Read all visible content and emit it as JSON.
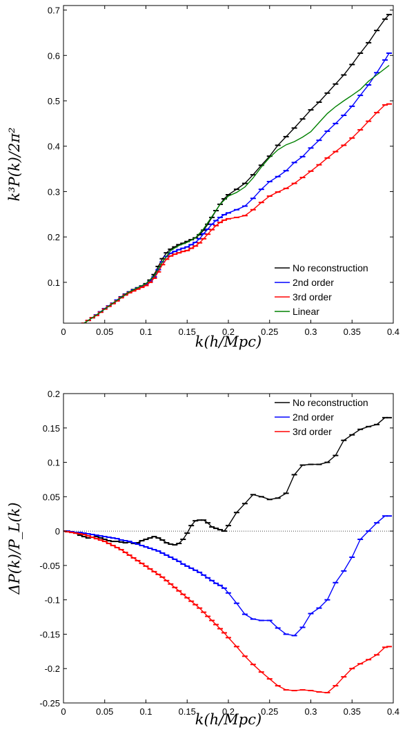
{
  "chart_data": [
    {
      "type": "line",
      "title": "",
      "xlabel": "k(h/Mpc)",
      "ylabel": "k³P(k)/2π²",
      "xlim": [
        0,
        0.4
      ],
      "ylim": [
        0.01,
        0.71
      ],
      "xticks": [
        "0",
        "0.05",
        "0.1",
        "0.15",
        "0.2",
        "0.25",
        "0.3",
        "0.35",
        "0.4"
      ],
      "yticks": [
        "0.1",
        "0.2",
        "0.3",
        "0.4",
        "0.5",
        "0.6",
        "0.7"
      ],
      "grid": false,
      "legend_position": "bottom-right",
      "series": [
        {
          "name": "No reconstruction",
          "color": "#000000",
          "error_bars": true,
          "x": [
            0.025,
            0.03,
            0.035,
            0.04,
            0.045,
            0.05,
            0.055,
            0.06,
            0.065,
            0.07,
            0.075,
            0.08,
            0.085,
            0.09,
            0.095,
            0.1,
            0.105,
            0.11,
            0.115,
            0.12,
            0.125,
            0.13,
            0.135,
            0.14,
            0.145,
            0.15,
            0.155,
            0.16,
            0.165,
            0.17,
            0.175,
            0.18,
            0.185,
            0.19,
            0.195,
            0.2,
            0.21,
            0.22,
            0.23,
            0.24,
            0.25,
            0.26,
            0.27,
            0.28,
            0.29,
            0.3,
            0.31,
            0.32,
            0.33,
            0.34,
            0.35,
            0.36,
            0.37,
            0.38,
            0.39,
            0.395
          ],
          "y": [
            0.01,
            0.016,
            0.022,
            0.028,
            0.035,
            0.042,
            0.048,
            0.054,
            0.061,
            0.068,
            0.074,
            0.079,
            0.084,
            0.088,
            0.092,
            0.097,
            0.105,
            0.117,
            0.135,
            0.152,
            0.165,
            0.173,
            0.178,
            0.183,
            0.186,
            0.19,
            0.194,
            0.198,
            0.205,
            0.215,
            0.228,
            0.243,
            0.258,
            0.272,
            0.284,
            0.293,
            0.305,
            0.318,
            0.337,
            0.358,
            0.378,
            0.402,
            0.421,
            0.44,
            0.46,
            0.48,
            0.497,
            0.517,
            0.537,
            0.557,
            0.58,
            0.605,
            0.628,
            0.655,
            0.68,
            0.69
          ]
        },
        {
          "name": "2nd order",
          "color": "#0000ff",
          "error_bars": true,
          "x": [
            0.025,
            0.03,
            0.035,
            0.04,
            0.045,
            0.05,
            0.055,
            0.06,
            0.065,
            0.07,
            0.075,
            0.08,
            0.085,
            0.09,
            0.095,
            0.1,
            0.105,
            0.11,
            0.115,
            0.12,
            0.125,
            0.13,
            0.135,
            0.14,
            0.145,
            0.15,
            0.155,
            0.16,
            0.165,
            0.17,
            0.175,
            0.18,
            0.185,
            0.19,
            0.195,
            0.2,
            0.21,
            0.22,
            0.23,
            0.24,
            0.25,
            0.26,
            0.27,
            0.28,
            0.29,
            0.3,
            0.31,
            0.32,
            0.33,
            0.34,
            0.35,
            0.36,
            0.37,
            0.38,
            0.39,
            0.395
          ],
          "y": [
            0.01,
            0.016,
            0.022,
            0.028,
            0.035,
            0.042,
            0.048,
            0.054,
            0.061,
            0.067,
            0.073,
            0.078,
            0.083,
            0.087,
            0.091,
            0.095,
            0.102,
            0.112,
            0.128,
            0.145,
            0.157,
            0.164,
            0.168,
            0.172,
            0.175,
            0.178,
            0.183,
            0.188,
            0.196,
            0.207,
            0.217,
            0.228,
            0.236,
            0.243,
            0.249,
            0.253,
            0.26,
            0.268,
            0.285,
            0.305,
            0.322,
            0.333,
            0.346,
            0.364,
            0.377,
            0.396,
            0.413,
            0.433,
            0.45,
            0.468,
            0.488,
            0.512,
            0.535,
            0.562,
            0.59,
            0.605
          ]
        },
        {
          "name": "3rd order",
          "color": "#ff0000",
          "error_bars": true,
          "x": [
            0.025,
            0.03,
            0.035,
            0.04,
            0.045,
            0.05,
            0.055,
            0.06,
            0.065,
            0.07,
            0.075,
            0.08,
            0.085,
            0.09,
            0.095,
            0.1,
            0.105,
            0.11,
            0.115,
            0.12,
            0.125,
            0.13,
            0.135,
            0.14,
            0.145,
            0.15,
            0.155,
            0.16,
            0.165,
            0.17,
            0.175,
            0.18,
            0.185,
            0.19,
            0.195,
            0.2,
            0.21,
            0.22,
            0.23,
            0.24,
            0.25,
            0.26,
            0.27,
            0.28,
            0.29,
            0.3,
            0.31,
            0.32,
            0.33,
            0.34,
            0.35,
            0.36,
            0.37,
            0.38,
            0.39,
            0.395
          ],
          "y": [
            0.01,
            0.016,
            0.022,
            0.027,
            0.034,
            0.041,
            0.047,
            0.053,
            0.059,
            0.066,
            0.072,
            0.077,
            0.081,
            0.085,
            0.089,
            0.093,
            0.1,
            0.109,
            0.123,
            0.139,
            0.151,
            0.158,
            0.162,
            0.165,
            0.168,
            0.17,
            0.175,
            0.18,
            0.187,
            0.196,
            0.206,
            0.216,
            0.225,
            0.232,
            0.237,
            0.24,
            0.243,
            0.247,
            0.26,
            0.276,
            0.29,
            0.299,
            0.307,
            0.318,
            0.331,
            0.345,
            0.359,
            0.374,
            0.388,
            0.402,
            0.418,
            0.436,
            0.455,
            0.474,
            0.491,
            0.493
          ]
        },
        {
          "name": "Linear",
          "color": "#008000",
          "error_bars": false,
          "x": [
            0.025,
            0.04,
            0.06,
            0.08,
            0.1,
            0.11,
            0.12,
            0.13,
            0.14,
            0.15,
            0.16,
            0.17,
            0.18,
            0.19,
            0.2,
            0.21,
            0.22,
            0.23,
            0.24,
            0.25,
            0.26,
            0.27,
            0.28,
            0.29,
            0.3,
            0.31,
            0.32,
            0.33,
            0.34,
            0.35,
            0.36,
            0.37,
            0.38,
            0.395
          ],
          "y": [
            0.01,
            0.028,
            0.054,
            0.079,
            0.097,
            0.114,
            0.145,
            0.17,
            0.181,
            0.188,
            0.198,
            0.218,
            0.245,
            0.272,
            0.29,
            0.298,
            0.31,
            0.33,
            0.354,
            0.375,
            0.392,
            0.403,
            0.41,
            0.42,
            0.432,
            0.452,
            0.472,
            0.487,
            0.5,
            0.512,
            0.525,
            0.543,
            0.557,
            0.578
          ]
        }
      ]
    },
    {
      "type": "line",
      "title": "",
      "xlabel": "k(h/Mpc)",
      "ylabel": "ΔP(k)/P_L(k)",
      "xlim": [
        0,
        0.4
      ],
      "ylim": [
        -0.25,
        0.2
      ],
      "xticks": [
        "0",
        "0.05",
        "0.1",
        "0.15",
        "0.2",
        "0.25",
        "0.3",
        "0.35",
        "0.4"
      ],
      "yticks": [
        "-0.25",
        "-0.2",
        "-0.15",
        "-0.1",
        "-0.05",
        "0",
        "0.05",
        "0.1",
        "0.15",
        "0.2"
      ],
      "grid": false,
      "reference_line_y": 0,
      "legend_position": "top-right",
      "series": [
        {
          "name": "No reconstruction",
          "color": "#000000",
          "error_bars": true,
          "x": [
            0.0,
            0.005,
            0.01,
            0.015,
            0.02,
            0.025,
            0.03,
            0.035,
            0.04,
            0.045,
            0.05,
            0.055,
            0.06,
            0.065,
            0.07,
            0.075,
            0.08,
            0.085,
            0.09,
            0.095,
            0.1,
            0.105,
            0.11,
            0.115,
            0.12,
            0.125,
            0.13,
            0.135,
            0.14,
            0.145,
            0.15,
            0.155,
            0.16,
            0.165,
            0.17,
            0.175,
            0.18,
            0.185,
            0.19,
            0.195,
            0.2,
            0.21,
            0.22,
            0.23,
            0.24,
            0.25,
            0.26,
            0.27,
            0.28,
            0.29,
            0.3,
            0.31,
            0.32,
            0.33,
            0.34,
            0.35,
            0.36,
            0.37,
            0.38,
            0.39,
            0.395
          ],
          "y": [
            0.0,
            0.0,
            -0.001,
            -0.003,
            -0.006,
            -0.008,
            -0.01,
            -0.009,
            -0.008,
            -0.01,
            -0.012,
            -0.014,
            -0.015,
            -0.015,
            -0.016,
            -0.017,
            -0.016,
            -0.018,
            -0.017,
            -0.014,
            -0.012,
            -0.01,
            -0.008,
            -0.01,
            -0.013,
            -0.017,
            -0.019,
            -0.02,
            -0.018,
            -0.012,
            -0.003,
            0.008,
            0.015,
            0.016,
            0.016,
            0.012,
            0.006,
            0.004,
            0.002,
            0.0,
            0.008,
            0.027,
            0.04,
            0.053,
            0.05,
            0.046,
            0.048,
            0.055,
            0.082,
            0.096,
            0.097,
            0.097,
            0.1,
            0.11,
            0.132,
            0.14,
            0.148,
            0.152,
            0.155,
            0.165,
            0.165
          ]
        },
        {
          "name": "2nd order",
          "color": "#0000ff",
          "error_bars": true,
          "x": [
            0.0,
            0.005,
            0.01,
            0.015,
            0.02,
            0.025,
            0.03,
            0.035,
            0.04,
            0.045,
            0.05,
            0.055,
            0.06,
            0.065,
            0.07,
            0.075,
            0.08,
            0.085,
            0.09,
            0.095,
            0.1,
            0.105,
            0.11,
            0.115,
            0.12,
            0.125,
            0.13,
            0.135,
            0.14,
            0.145,
            0.15,
            0.155,
            0.16,
            0.165,
            0.17,
            0.175,
            0.18,
            0.185,
            0.19,
            0.195,
            0.2,
            0.21,
            0.22,
            0.23,
            0.24,
            0.25,
            0.26,
            0.27,
            0.28,
            0.29,
            0.3,
            0.31,
            0.32,
            0.33,
            0.34,
            0.35,
            0.36,
            0.37,
            0.38,
            0.39,
            0.395
          ],
          "y": [
            0.0,
            0.0,
            -0.001,
            -0.002,
            -0.002,
            -0.003,
            -0.004,
            -0.005,
            -0.006,
            -0.007,
            -0.008,
            -0.009,
            -0.01,
            -0.011,
            -0.013,
            -0.014,
            -0.015,
            -0.017,
            -0.019,
            -0.021,
            -0.023,
            -0.025,
            -0.027,
            -0.029,
            -0.032,
            -0.035,
            -0.038,
            -0.041,
            -0.044,
            -0.048,
            -0.051,
            -0.054,
            -0.057,
            -0.06,
            -0.064,
            -0.068,
            -0.072,
            -0.076,
            -0.079,
            -0.083,
            -0.09,
            -0.105,
            -0.121,
            -0.128,
            -0.13,
            -0.13,
            -0.141,
            -0.15,
            -0.152,
            -0.14,
            -0.12,
            -0.112,
            -0.1,
            -0.075,
            -0.058,
            -0.038,
            -0.012,
            0.0,
            0.012,
            0.022,
            0.022
          ]
        },
        {
          "name": "3rd order",
          "color": "#ff0000",
          "error_bars": true,
          "x": [
            0.0,
            0.005,
            0.01,
            0.015,
            0.02,
            0.025,
            0.03,
            0.035,
            0.04,
            0.045,
            0.05,
            0.055,
            0.06,
            0.065,
            0.07,
            0.075,
            0.08,
            0.085,
            0.09,
            0.095,
            0.1,
            0.105,
            0.11,
            0.115,
            0.12,
            0.125,
            0.13,
            0.135,
            0.14,
            0.145,
            0.15,
            0.155,
            0.16,
            0.165,
            0.17,
            0.175,
            0.18,
            0.185,
            0.19,
            0.195,
            0.2,
            0.21,
            0.22,
            0.23,
            0.24,
            0.25,
            0.26,
            0.27,
            0.28,
            0.29,
            0.3,
            0.31,
            0.32,
            0.33,
            0.34,
            0.35,
            0.36,
            0.37,
            0.38,
            0.39,
            0.395
          ],
          "y": [
            0.0,
            -0.001,
            -0.002,
            -0.003,
            -0.004,
            -0.005,
            -0.007,
            -0.009,
            -0.011,
            -0.013,
            -0.015,
            -0.018,
            -0.021,
            -0.024,
            -0.027,
            -0.031,
            -0.035,
            -0.039,
            -0.043,
            -0.047,
            -0.051,
            -0.055,
            -0.059,
            -0.063,
            -0.067,
            -0.072,
            -0.077,
            -0.082,
            -0.087,
            -0.092,
            -0.097,
            -0.102,
            -0.107,
            -0.112,
            -0.118,
            -0.124,
            -0.13,
            -0.136,
            -0.142,
            -0.148,
            -0.155,
            -0.168,
            -0.182,
            -0.194,
            -0.205,
            -0.215,
            -0.225,
            -0.231,
            -0.232,
            -0.231,
            -0.232,
            -0.234,
            -0.235,
            -0.225,
            -0.212,
            -0.2,
            -0.193,
            -0.187,
            -0.18,
            -0.169,
            -0.168
          ]
        }
      ]
    }
  ]
}
